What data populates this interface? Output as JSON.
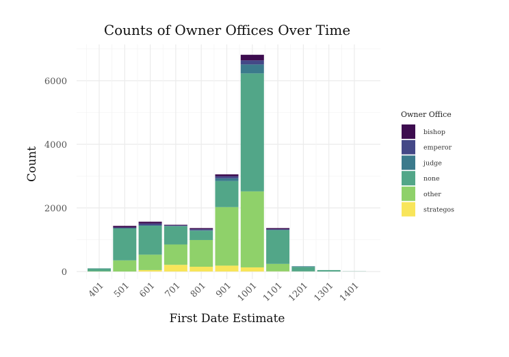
{
  "chart_data": {
    "type": "bar",
    "stacked": true,
    "title": "Counts of Owner Offices Over Time",
    "xlabel": "First Date Estimate",
    "ylabel": "Count",
    "categories": [
      "401",
      "501",
      "601",
      "701",
      "801",
      "901",
      "1001",
      "1101",
      "1201",
      "1301",
      "1401"
    ],
    "yticks": [
      0,
      2000,
      4000,
      6000
    ],
    "ytick_labels": [
      "0",
      "2000",
      "4000",
      "6000"
    ],
    "ylim": [
      0,
      7150
    ],
    "grid": true,
    "legend": {
      "title": "Owner Office",
      "position": "right"
    },
    "series": [
      {
        "name": "strategos",
        "color": "#f8e55a",
        "values": [
          0,
          0,
          45,
          210,
          150,
          185,
          130,
          5,
          0,
          0,
          0
        ]
      },
      {
        "name": "other",
        "color": "#8fd16a",
        "values": [
          10,
          350,
          485,
          640,
          840,
          1840,
          2390,
          235,
          5,
          0,
          0
        ]
      },
      {
        "name": "none",
        "color": "#52a688",
        "values": [
          85,
          1005,
          910,
          575,
          295,
          820,
          3710,
          1060,
          140,
          45,
          5
        ]
      },
      {
        "name": "judge",
        "color": "#3b7a8c",
        "values": [
          5,
          10,
          10,
          10,
          10,
          85,
          280,
          10,
          20,
          0,
          0
        ]
      },
      {
        "name": "emperor",
        "color": "#444887",
        "values": [
          0,
          20,
          60,
          15,
          35,
          65,
          130,
          20,
          0,
          0,
          0
        ]
      },
      {
        "name": "bishop",
        "color": "#3d0c4f",
        "values": [
          0,
          50,
          55,
          20,
          35,
          60,
          175,
          35,
          0,
          0,
          0
        ]
      }
    ]
  }
}
